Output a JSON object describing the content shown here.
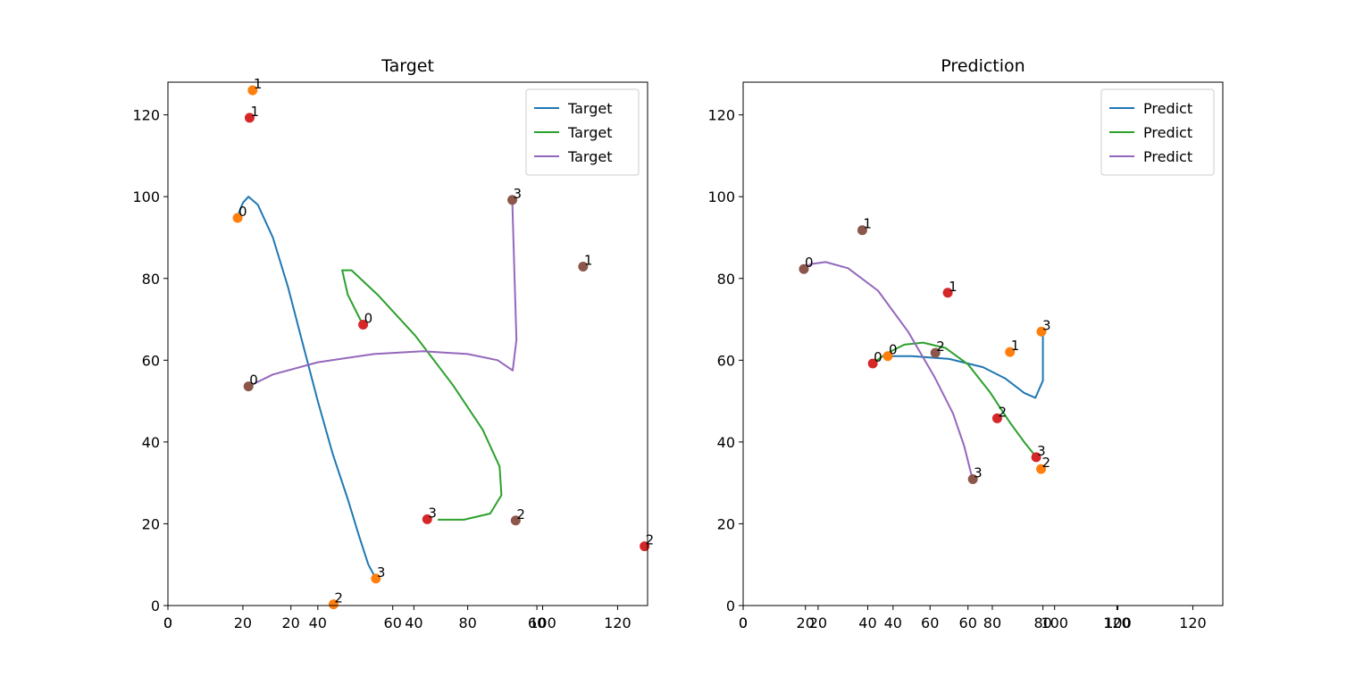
{
  "chart_data": [
    {
      "type": "line",
      "title": "Target",
      "xlim": [
        0,
        128
      ],
      "ylim": [
        0,
        128
      ],
      "grid": false,
      "legend_position": "top-right",
      "xticks_primary": [
        "0",
        "20",
        "40",
        "60",
        "80",
        "100",
        "120"
      ],
      "xticks_secondary": [
        "0",
        "20",
        "40",
        "60"
      ],
      "yticks": [
        "0",
        "20",
        "40",
        "60",
        "80",
        "100",
        "120"
      ],
      "series": [
        {
          "name": "Target",
          "color": "#1f77b4",
          "curve": [
            [
              18.4,
              94.8
            ],
            [
              20,
              98.5
            ],
            [
              21.5,
              100
            ],
            [
              24,
              98
            ],
            [
              28,
              90
            ],
            [
              32,
              78
            ],
            [
              36,
              64
            ],
            [
              40,
              50
            ],
            [
              44,
              37
            ],
            [
              48,
              26
            ],
            [
              51,
              17
            ],
            [
              53.5,
              10
            ],
            [
              55.5,
              6.6
            ]
          ],
          "control_points_color": "#ff7f0e",
          "control_points": [
            {
              "label": "0",
              "x": 18.6,
              "y": 94.8
            },
            {
              "label": "1",
              "x": 22.6,
              "y": 126
            },
            {
              "label": "2",
              "x": 44.2,
              "y": 0.3
            },
            {
              "label": "3",
              "x": 55.5,
              "y": 6.6
            }
          ]
        },
        {
          "name": "Target",
          "color": "#2ca02c",
          "curve": [
            [
              52,
              68.7
            ],
            [
              48,
              76
            ],
            [
              46.5,
              82
            ],
            [
              49,
              82
            ],
            [
              56,
              76
            ],
            [
              66,
              66
            ],
            [
              76,
              54
            ],
            [
              84,
              43
            ],
            [
              88.5,
              34
            ],
            [
              89,
              27
            ],
            [
              86,
              22.5
            ],
            [
              79,
              21
            ],
            [
              72,
              21
            ]
          ],
          "control_points_color": "#d62728",
          "control_points": [
            {
              "label": "0",
              "x": 52.1,
              "y": 68.7
            },
            {
              "label": "1",
              "x": 21.8,
              "y": 119.3
            },
            {
              "label": "2",
              "x": 127.2,
              "y": 14.5
            },
            {
              "label": "3",
              "x": 69.2,
              "y": 21.1
            }
          ]
        },
        {
          "name": "Target",
          "color": "#9467bd",
          "curve": [
            [
              21.5,
              53.6
            ],
            [
              28,
              56.5
            ],
            [
              40,
              59.5
            ],
            [
              55,
              61.5
            ],
            [
              68,
              62.2
            ],
            [
              80,
              61.5
            ],
            [
              88,
              60
            ],
            [
              92,
              57.5
            ],
            [
              93,
              65
            ],
            [
              92.5,
              80
            ],
            [
              91.9,
              99.2
            ]
          ],
          "control_points_color": "#8c564b",
          "control_points": [
            {
              "label": "0",
              "x": 21.5,
              "y": 53.6
            },
            {
              "label": "1",
              "x": 110.8,
              "y": 82.9
            },
            {
              "label": "2",
              "x": 92.8,
              "y": 20.8
            },
            {
              "label": "3",
              "x": 91.9,
              "y": 99.2
            }
          ]
        }
      ]
    },
    {
      "type": "line",
      "title": "Prediction",
      "xlim": [
        0,
        128
      ],
      "ylim": [
        0,
        128
      ],
      "grid": false,
      "legend_position": "top-right",
      "xticks_primary": [
        "0",
        "20",
        "40",
        "60",
        "80",
        "100",
        "120"
      ],
      "xticks_secondary": [
        "0",
        "20",
        "40",
        "60",
        "80",
        "100",
        "120"
      ],
      "yticks": [
        "0",
        "20",
        "40",
        "60",
        "80",
        "100",
        "120"
      ],
      "series": [
        {
          "name": "Predict",
          "color": "#1f77b4",
          "curve": [
            [
              38.5,
              61
            ],
            [
              45,
              61
            ],
            [
              55,
              60.3
            ],
            [
              64,
              58.3
            ],
            [
              70,
              55.5
            ],
            [
              75,
              52
            ],
            [
              78,
              50.8
            ],
            [
              80,
              55
            ],
            [
              80,
              67
            ]
          ],
          "control_points_color": "#ff7f0e",
          "control_points": [
            {
              "label": "0",
              "x": 38.6,
              "y": 61
            },
            {
              "label": "1",
              "x": 71.2,
              "y": 62
            },
            {
              "label": "2",
              "x": 79.5,
              "y": 33.4
            },
            {
              "label": "3",
              "x": 79.6,
              "y": 67
            }
          ]
        },
        {
          "name": "Predict",
          "color": "#2ca02c",
          "curve": [
            [
              34.5,
              59.2
            ],
            [
              38,
              61.5
            ],
            [
              43,
              63.8
            ],
            [
              48,
              64.3
            ],
            [
              54,
              63
            ],
            [
              60,
              59
            ],
            [
              66,
              52
            ],
            [
              71,
              45
            ],
            [
              75,
              40
            ],
            [
              78.2,
              36.3
            ]
          ],
          "control_points_color": "#d62728",
          "control_points": [
            {
              "label": "0",
              "x": 34.6,
              "y": 59.2
            },
            {
              "label": "1",
              "x": 54.6,
              "y": 76.5
            },
            {
              "label": "2",
              "x": 67.8,
              "y": 45.8
            },
            {
              "label": "3",
              "x": 78.2,
              "y": 36.3
            }
          ]
        },
        {
          "name": "Predict",
          "color": "#9467bd",
          "curve": [
            [
              16.2,
              82.3
            ],
            [
              18,
              83.5
            ],
            [
              22,
              84
            ],
            [
              28,
              82.5
            ],
            [
              36,
              77
            ],
            [
              44,
              67
            ],
            [
              51,
              56
            ],
            [
              56,
              47
            ],
            [
              59,
              39
            ],
            [
              61.2,
              30.9
            ]
          ],
          "control_points_color": "#8c564b",
          "control_points": [
            {
              "label": "0",
              "x": 16.2,
              "y": 82.3
            },
            {
              "label": "1",
              "x": 31.8,
              "y": 91.8
            },
            {
              "label": "2",
              "x": 51.3,
              "y": 61.8
            },
            {
              "label": "3",
              "x": 61.3,
              "y": 30.9
            }
          ]
        }
      ]
    }
  ]
}
